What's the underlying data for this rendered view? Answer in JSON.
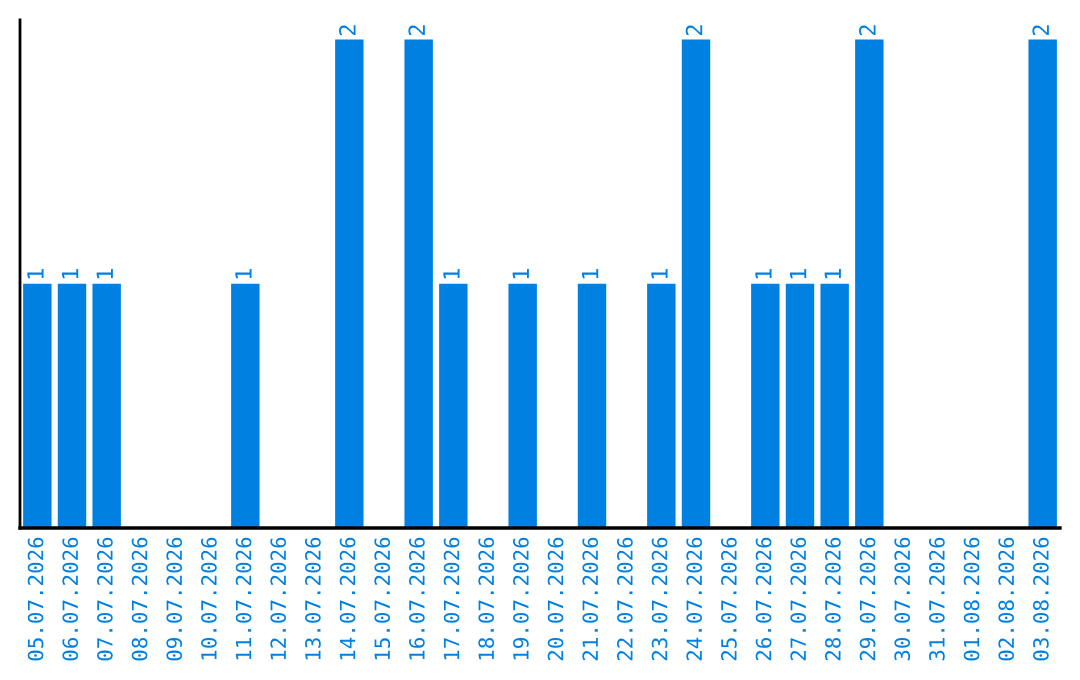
{
  "chart_data": {
    "type": "bar",
    "categories": [
      "05.07.2026",
      "06.07.2026",
      "07.07.2026",
      "08.07.2026",
      "09.07.2026",
      "10.07.2026",
      "11.07.2026",
      "12.07.2026",
      "13.07.2026",
      "14.07.2026",
      "15.07.2026",
      "16.07.2026",
      "17.07.2026",
      "18.07.2026",
      "19.07.2026",
      "20.07.2026",
      "21.07.2026",
      "22.07.2026",
      "23.07.2026",
      "24.07.2026",
      "25.07.2026",
      "26.07.2026",
      "27.07.2026",
      "28.07.2026",
      "29.07.2026",
      "30.07.2026",
      "31.07.2026",
      "01.08.2026",
      "02.08.2026",
      "03.08.2026"
    ],
    "values": [
      1,
      1,
      1,
      0,
      0,
      0,
      1,
      0,
      0,
      2,
      0,
      2,
      1,
      0,
      1,
      0,
      1,
      0,
      1,
      2,
      0,
      1,
      1,
      1,
      2,
      0,
      0,
      0,
      0,
      2
    ],
    "value_labels": [
      "1",
      "1",
      "1",
      null,
      null,
      null,
      "1",
      null,
      null,
      "2",
      null,
      "2",
      "1",
      null,
      "1",
      null,
      "1",
      null,
      "1",
      "2",
      null,
      "1",
      "1",
      "1",
      "2",
      null,
      null,
      null,
      null,
      "2"
    ],
    "color": "#0080e0",
    "ylim": [
      0,
      2.08
    ],
    "tick_labels": "x",
    "grid": false,
    "legend": false
  }
}
